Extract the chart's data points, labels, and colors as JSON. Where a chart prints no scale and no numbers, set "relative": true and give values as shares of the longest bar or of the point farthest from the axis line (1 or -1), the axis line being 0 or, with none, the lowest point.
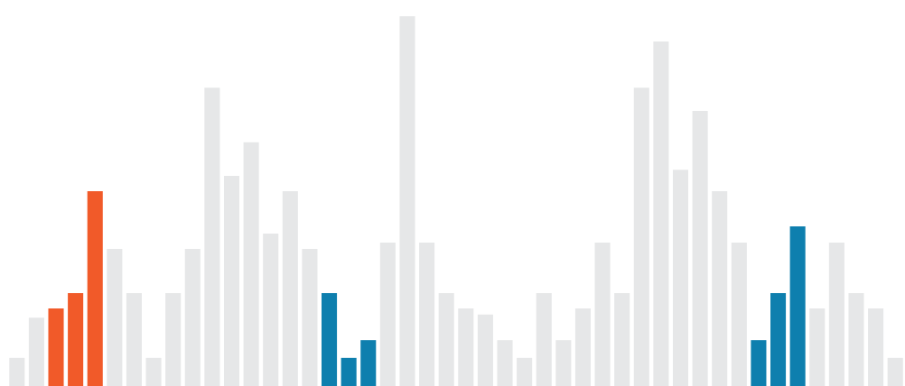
{
  "chart_data": {
    "type": "bar",
    "relative": true,
    "categories": [
      null,
      null,
      null,
      null,
      null,
      null,
      null,
      null,
      null,
      null,
      null,
      null,
      null,
      null,
      null,
      null,
      null,
      null,
      null,
      null,
      null,
      null,
      null,
      null,
      null,
      null,
      null,
      null,
      null,
      null,
      null,
      null,
      null,
      null,
      null,
      null,
      null,
      null,
      null,
      null,
      null,
      null,
      null,
      null,
      null,
      null
    ],
    "values": [
      0.076,
      0.185,
      0.21,
      0.251,
      0.527,
      0.371,
      0.251,
      0.076,
      0.251,
      0.371,
      0.807,
      0.568,
      0.659,
      0.412,
      0.527,
      0.371,
      0.251,
      0.076,
      0.124,
      0.388,
      1,
      0.388,
      0.251,
      0.21,
      0.193,
      0.124,
      0.076,
      0.251,
      0.124,
      0.21,
      0.388,
      0.251,
      0.807,
      0.932,
      0.585,
      0.744,
      0.527,
      0.388,
      0.124,
      0.251,
      0.432,
      0.21,
      0.388,
      0.251,
      0.21,
      0.076
    ],
    "colors": [
      "#e6e7e8",
      "#e6e7e8",
      "#f15a29",
      "#f15a29",
      "#f15a29",
      "#e6e7e8",
      "#e6e7e8",
      "#e6e7e8",
      "#e6e7e8",
      "#e6e7e8",
      "#e6e7e8",
      "#e6e7e8",
      "#e6e7e8",
      "#e6e7e8",
      "#e6e7e8",
      "#e6e7e8",
      "#0e7fae",
      "#0e7fae",
      "#0e7fae",
      "#e6e7e8",
      "#e6e7e8",
      "#e6e7e8",
      "#e6e7e8",
      "#e6e7e8",
      "#e6e7e8",
      "#e6e7e8",
      "#e6e7e8",
      "#e6e7e8",
      "#e6e7e8",
      "#e6e7e8",
      "#e6e7e8",
      "#e6e7e8",
      "#e6e7e8",
      "#e6e7e8",
      "#e6e7e8",
      "#e6e7e8",
      "#e6e7e8",
      "#e6e7e8",
      "#0e7fae",
      "#0e7fae",
      "#0e7fae",
      "#e6e7e8",
      "#e6e7e8",
      "#e6e7e8",
      "#e6e7e8",
      "#e6e7e8"
    ],
    "legend": false
  }
}
